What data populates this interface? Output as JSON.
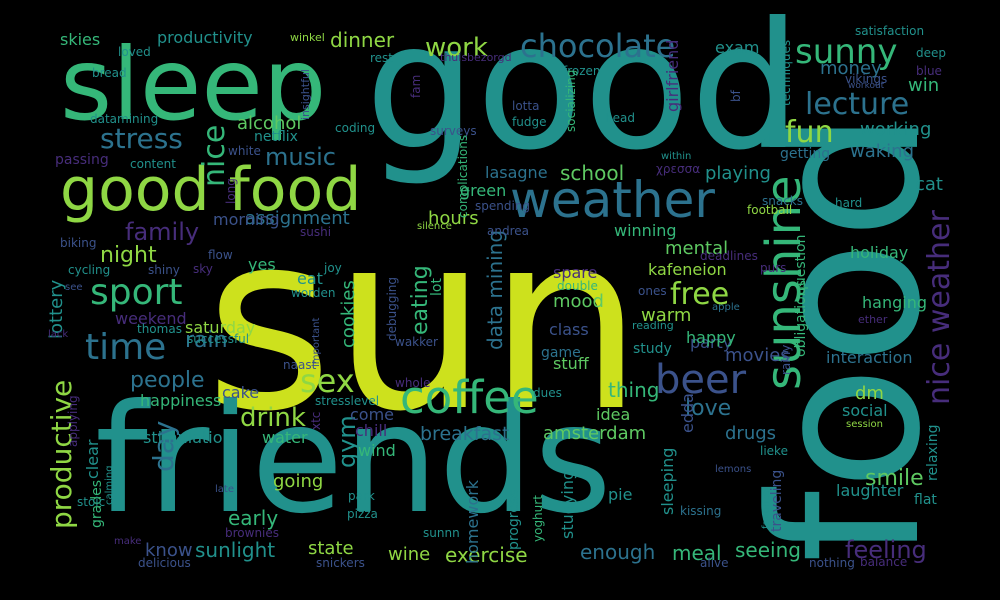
{
  "palette": {
    "background": "#000000",
    "yellow_green": "#cde11d",
    "light_green": "#8fd744",
    "green": "#5ec962",
    "teal_green": "#35b779",
    "teal": "#21918c",
    "blue_teal": "#2c728e",
    "steel_blue": "#3b528b",
    "indigo": "#472d7b",
    "purple": "#440154"
  },
  "words": [
    {
      "text": "sun"
    },
    {
      "text": "food"
    },
    {
      "text": "good"
    },
    {
      "text": "friends"
    },
    {
      "text": "sleep"
    },
    {
      "text": "good food"
    },
    {
      "text": "weather"
    },
    {
      "text": "coffee"
    },
    {
      "text": "sunshine"
    },
    {
      "text": "nice weather"
    },
    {
      "text": "chocolate"
    },
    {
      "text": "sunny"
    },
    {
      "text": "lecture"
    },
    {
      "text": "beer"
    },
    {
      "text": "sex"
    },
    {
      "text": "sport"
    },
    {
      "text": "time"
    },
    {
      "text": "free"
    },
    {
      "text": "fun"
    },
    {
      "text": "stress"
    },
    {
      "text": "nice"
    },
    {
      "text": "productive"
    },
    {
      "text": "music"
    },
    {
      "text": "work"
    },
    {
      "text": "family"
    },
    {
      "text": "drink"
    },
    {
      "text": "day"
    },
    {
      "text": "night"
    },
    {
      "text": "people"
    },
    {
      "text": "gym"
    },
    {
      "text": "alcohol"
    },
    {
      "text": "dinner"
    },
    {
      "text": "exercise"
    },
    {
      "text": "breakfast"
    },
    {
      "text": "love"
    },
    {
      "text": "smile"
    },
    {
      "text": "feeling"
    },
    {
      "text": "rain"
    },
    {
      "text": "eating"
    },
    {
      "text": "school"
    },
    {
      "text": "assignment"
    },
    {
      "text": "hours"
    },
    {
      "text": "mental"
    },
    {
      "text": "kafeneion"
    },
    {
      "text": "party"
    },
    {
      "text": "data mining"
    },
    {
      "text": "lottery"
    },
    {
      "text": "cookies"
    },
    {
      "text": "lasagne"
    },
    {
      "text": "playing"
    },
    {
      "text": "morning"
    },
    {
      "text": "saturday"
    },
    {
      "text": "cake"
    },
    {
      "text": "happiness"
    },
    {
      "text": "early"
    },
    {
      "text": "going"
    },
    {
      "text": "state"
    },
    {
      "text": "sunlight"
    },
    {
      "text": "know"
    },
    {
      "text": "wine"
    },
    {
      "text": "enough"
    },
    {
      "text": "meal"
    },
    {
      "text": "seeing"
    },
    {
      "text": "amsterdam"
    },
    {
      "text": "drugs"
    },
    {
      "text": "thing"
    },
    {
      "text": "movies"
    },
    {
      "text": "happy"
    },
    {
      "text": "mood"
    },
    {
      "text": "warm"
    },
    {
      "text": "working"
    },
    {
      "text": "waking"
    },
    {
      "text": "money"
    },
    {
      "text": "win"
    },
    {
      "text": "exam"
    },
    {
      "text": "productivity"
    },
    {
      "text": "skies"
    },
    {
      "text": "cat"
    },
    {
      "text": "holiday"
    },
    {
      "text": "hanging"
    },
    {
      "text": "interaction"
    },
    {
      "text": "laughter"
    },
    {
      "text": "relaxing"
    },
    {
      "text": "homework"
    },
    {
      "text": "studying"
    },
    {
      "text": "sleeping"
    },
    {
      "text": "edda"
    },
    {
      "text": "pie"
    },
    {
      "text": "idea"
    },
    {
      "text": "stimulation"
    },
    {
      "text": "water"
    },
    {
      "text": "chill"
    },
    {
      "text": "come"
    },
    {
      "text": "wind"
    },
    {
      "text": "clear"
    },
    {
      "text": "grades"
    },
    {
      "text": "yes"
    },
    {
      "text": "eat"
    },
    {
      "text": "weekend"
    },
    {
      "text": "spare"
    },
    {
      "text": "game"
    },
    {
      "text": "stuff"
    },
    {
      "text": "class"
    },
    {
      "text": "study"
    },
    {
      "text": "social"
    },
    {
      "text": "dm"
    },
    {
      "text": "green"
    },
    {
      "text": "winning"
    },
    {
      "text": "girlfriend"
    },
    {
      "text": "getting"
    },
    {
      "text": "netflix"
    },
    {
      "text": "passing"
    },
    {
      "text": "question"
    },
    {
      "text": "obligations"
    },
    {
      "text": "lot"
    },
    {
      "text": "progress"
    },
    {
      "text": "yoghurt"
    },
    {
      "text": "sunnn"
    },
    {
      "text": "kissing"
    },
    {
      "text": "traveling"
    },
    {
      "text": "flat"
    },
    {
      "text": "coding"
    },
    {
      "text": "white"
    },
    {
      "text": "content"
    },
    {
      "text": "rest"
    },
    {
      "text": "loved"
    },
    {
      "text": "bread"
    },
    {
      "text": "fudge"
    },
    {
      "text": "lotta"
    },
    {
      "text": "surveys"
    },
    {
      "text": "complications"
    },
    {
      "text": "fam"
    },
    {
      "text": "frozen"
    },
    {
      "text": "head"
    },
    {
      "text": "deep"
    },
    {
      "text": "blue"
    },
    {
      "text": "satisfaction"
    },
    {
      "text": "vikings"
    },
    {
      "text": "workout"
    },
    {
      "text": "techniques"
    },
    {
      "text": "bf"
    },
    {
      "text": "within"
    },
    {
      "text": "χρεσσα"
    },
    {
      "text": "datamining"
    },
    {
      "text": "insightful"
    },
    {
      "text": "winkel"
    },
    {
      "text": "thuisbezorgd"
    },
    {
      "text": "socializing"
    },
    {
      "text": "spending"
    },
    {
      "text": "snacks"
    },
    {
      "text": "football"
    },
    {
      "text": "hard"
    },
    {
      "text": "purs"
    },
    {
      "text": "deadlines"
    },
    {
      "text": "andrea"
    },
    {
      "text": "silence"
    },
    {
      "text": "sushi"
    },
    {
      "text": "long"
    },
    {
      "text": "biking"
    },
    {
      "text": "flow"
    },
    {
      "text": "shiny"
    },
    {
      "text": "sky"
    },
    {
      "text": "cycling"
    },
    {
      "text": "joy"
    },
    {
      "text": "see"
    },
    {
      "text": "worden"
    },
    {
      "text": "debugging"
    },
    {
      "text": "double"
    },
    {
      "text": "ones"
    },
    {
      "text": "apple"
    },
    {
      "text": "ether"
    },
    {
      "text": "thomas"
    },
    {
      "text": "successful"
    },
    {
      "text": "important"
    },
    {
      "text": "wakker"
    },
    {
      "text": "reading"
    },
    {
      "text": "lack"
    },
    {
      "text": "rainy"
    },
    {
      "text": "naast"
    },
    {
      "text": "whole"
    },
    {
      "text": "dues"
    },
    {
      "text": "stresslevel"
    },
    {
      "text": "xtc"
    },
    {
      "text": "applying"
    },
    {
      "text": "session"
    },
    {
      "text": "lieke"
    },
    {
      "text": "lemons"
    },
    {
      "text": "stoic"
    },
    {
      "text": "calming"
    },
    {
      "text": "late"
    },
    {
      "text": "park"
    },
    {
      "text": "pizza"
    },
    {
      "text": "favorite"
    },
    {
      "text": "brownies"
    },
    {
      "text": "make"
    },
    {
      "text": "delicious"
    },
    {
      "text": "snickers"
    },
    {
      "text": "alive"
    },
    {
      "text": "nothing"
    },
    {
      "text": "balance"
    }
  ]
}
